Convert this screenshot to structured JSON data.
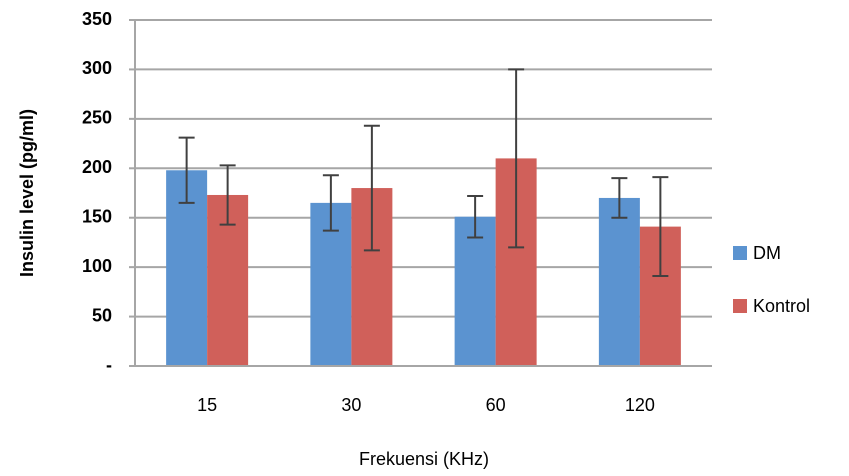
{
  "chart_data": {
    "type": "bar",
    "x_label": "Frekuensi (KHz)",
    "y_label": "Insulin level (pg/ml)",
    "categories": [
      "15",
      "30",
      "60",
      "120"
    ],
    "series": [
      {
        "name": "DM",
        "color": "#5b93d0",
        "values": [
          198,
          165,
          151,
          170
        ],
        "errors": [
          33,
          28,
          21,
          20
        ]
      },
      {
        "name": "Kontrol",
        "color": "#d0605a",
        "values": [
          173,
          180,
          210,
          141
        ],
        "errors": [
          30,
          63,
          90,
          50
        ]
      }
    ],
    "ylim": [
      0,
      350
    ],
    "yticks": [
      {
        "value": 0,
        "label": "-"
      },
      50,
      100,
      150,
      200,
      250,
      300,
      350
    ],
    "grid": true,
    "legend": "right",
    "error_color": "#404040"
  }
}
